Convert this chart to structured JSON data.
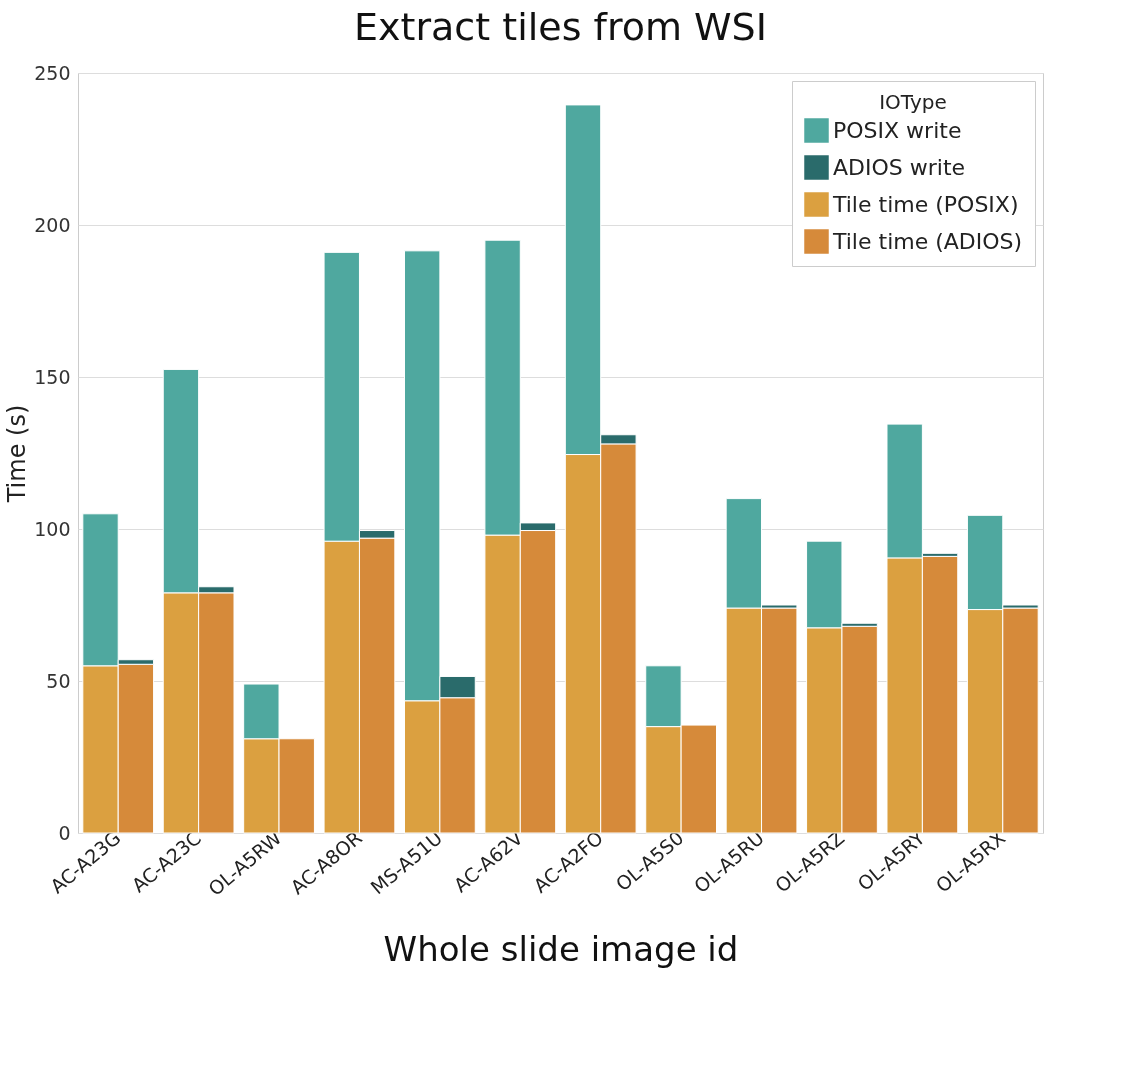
{
  "chart_data": {
    "type": "bar",
    "title": "Extract tiles from WSI",
    "xlabel": "Whole slide image id",
    "ylabel": "Time (s)",
    "legend_title": "IOType",
    "categories": [
      "AC-A23G",
      null,
      "AC-A23C",
      null,
      "OL-A5RW",
      null,
      "AC-A8OR",
      null,
      "MS-A51U",
      null,
      "AC-A62V",
      null,
      "AC-A2FO",
      null,
      "OL-A5S0",
      null,
      "OL-A5RU",
      null,
      "OL-A5RZ",
      null,
      "OL-A5RY",
      null,
      "OL-A5RX",
      null
    ],
    "series": [
      {
        "name": "Tile time (ADIOS)",
        "color": "#d68a3a",
        "values": [
          null,
          55.5,
          null,
          79,
          null,
          31,
          null,
          97,
          null,
          44.5,
          null,
          99.5,
          null,
          128,
          null,
          35.5,
          null,
          74,
          null,
          68,
          null,
          91,
          null,
          74
        ]
      },
      {
        "name": "Tile time (POSIX)",
        "color": "#dba040",
        "values": [
          55,
          null,
          79,
          null,
          31,
          null,
          96,
          null,
          43.5,
          null,
          98,
          null,
          124.5,
          null,
          35,
          null,
          74,
          null,
          67.5,
          null,
          90.5,
          null,
          73.5,
          null
        ]
      },
      {
        "name": "ADIOS write",
        "color": "#2a6b6b",
        "values": [
          null,
          1.5,
          null,
          2,
          null,
          null,
          null,
          2.5,
          null,
          7,
          null,
          2.5,
          null,
          3,
          null,
          null,
          null,
          1,
          null,
          1,
          null,
          1,
          null,
          1
        ]
      },
      {
        "name": "POSIX write",
        "color": "#4fa89f",
        "values": [
          50,
          null,
          73.5,
          null,
          18,
          null,
          95,
          null,
          148,
          null,
          97,
          null,
          115,
          null,
          20,
          null,
          36,
          null,
          28.5,
          null,
          44,
          null,
          31,
          null
        ]
      }
    ],
    "stacked": true,
    "ylim": [
      0,
      250
    ],
    "yticks": [
      0,
      50,
      100,
      150,
      200,
      250
    ],
    "grid": "y",
    "legend": "top right"
  }
}
